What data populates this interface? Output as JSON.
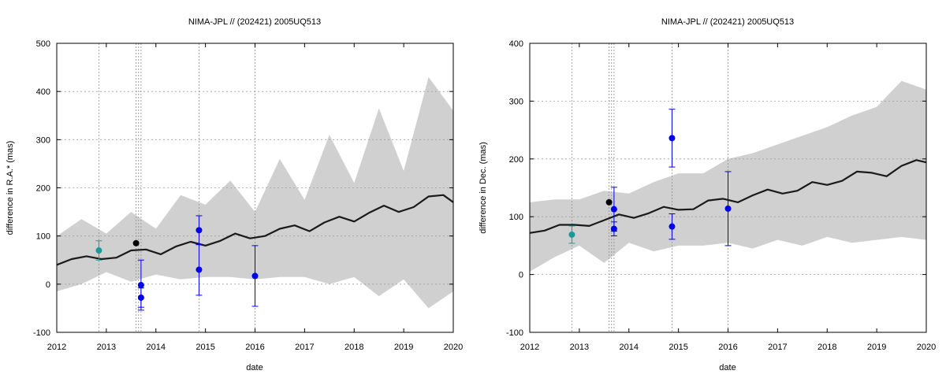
{
  "chart_data": [
    {
      "type": "scatter",
      "title": "NIMA-JPL // (202421) 2005UQ513",
      "xlabel": "date",
      "ylabel": "difference in R.A.* (mas)",
      "xlim": [
        2012,
        2020
      ],
      "ylim": [
        -100,
        500
      ],
      "xticks": [
        2012,
        2013,
        2014,
        2015,
        2016,
        2017,
        2018,
        2019,
        2020
      ],
      "yticks": [
        -100,
        0,
        100,
        200,
        300,
        400,
        500
      ],
      "grid": true,
      "vlines": [
        2012.85,
        2013.6,
        2013.65,
        2013.7,
        2014.87,
        2016.0
      ],
      "band": {
        "x": [
          2012.0,
          2012.5,
          2013.0,
          2013.5,
          2014.0,
          2014.5,
          2015.0,
          2015.5,
          2016.0,
          2016.5,
          2017.0,
          2017.5,
          2018.0,
          2018.5,
          2019.0,
          2019.5,
          2020.0
        ],
        "upper": [
          100,
          135,
          105,
          150,
          115,
          185,
          165,
          215,
          150,
          260,
          175,
          310,
          210,
          365,
          235,
          430,
          360
        ],
        "lower": [
          -15,
          0,
          25,
          5,
          20,
          10,
          15,
          15,
          10,
          15,
          15,
          0,
          15,
          -25,
          10,
          -50,
          -15
        ]
      },
      "model_line": {
        "x": [
          2012.0,
          2012.3,
          2012.6,
          2012.9,
          2013.2,
          2013.5,
          2013.8,
          2014.1,
          2014.4,
          2014.7,
          2015.0,
          2015.3,
          2015.6,
          2015.9,
          2016.2,
          2016.5,
          2016.8,
          2017.1,
          2017.4,
          2017.7,
          2018.0,
          2018.3,
          2018.6,
          2018.9,
          2019.2,
          2019.5,
          2019.8,
          2020.0
        ],
        "y": [
          40,
          52,
          58,
          52,
          55,
          70,
          72,
          62,
          78,
          88,
          80,
          90,
          105,
          95,
          100,
          115,
          122,
          110,
          128,
          140,
          130,
          148,
          163,
          150,
          160,
          182,
          185,
          170
        ]
      },
      "series": [
        {
          "name": "",
          "color": "#1a9b97",
          "points": [
            {
              "x": 2012.85,
              "y": 70,
              "err": 20
            }
          ]
        },
        {
          "name": "",
          "color": "#000000",
          "points": [
            {
              "x": 2013.6,
              "y": 85,
              "err": 0
            }
          ]
        },
        {
          "name": "",
          "color": "#0000ee",
          "points": [
            {
              "x": 2013.7,
              "y": -2,
              "err": 52
            },
            {
              "x": 2013.7,
              "y": -28,
              "err": 20
            },
            {
              "x": 2014.87,
              "y": 112,
              "err": 30
            },
            {
              "x": 2014.87,
              "y": 30,
              "err": 53
            },
            {
              "x": 2016.0,
              "y": 17,
              "err": 63
            }
          ]
        }
      ]
    },
    {
      "type": "scatter",
      "title": "NIMA-JPL // (202421) 2005UQ513",
      "xlabel": "date",
      "ylabel": "difference in Dec. (mas)",
      "xlim": [
        2012,
        2020
      ],
      "ylim": [
        -100,
        400
      ],
      "xticks": [
        2012,
        2013,
        2014,
        2015,
        2016,
        2017,
        2018,
        2019,
        2020
      ],
      "yticks": [
        -100,
        0,
        100,
        200,
        300,
        400
      ],
      "grid": true,
      "vlines": [
        2012.85,
        2013.6,
        2013.65,
        2013.7,
        2014.87,
        2016.0
      ],
      "band": {
        "x": [
          2012.0,
          2012.5,
          2013.0,
          2013.5,
          2014.0,
          2014.5,
          2015.0,
          2015.5,
          2016.0,
          2016.5,
          2017.0,
          2017.5,
          2018.0,
          2018.5,
          2019.0,
          2019.5,
          2020.0
        ],
        "upper": [
          125,
          130,
          130,
          145,
          140,
          160,
          175,
          175,
          200,
          210,
          225,
          240,
          255,
          275,
          290,
          335,
          320
        ],
        "lower": [
          5,
          30,
          50,
          20,
          55,
          40,
          50,
          50,
          55,
          45,
          60,
          50,
          65,
          55,
          60,
          65,
          60
        ]
      },
      "model_line": {
        "x": [
          2012.0,
          2012.3,
          2012.6,
          2012.9,
          2013.2,
          2013.5,
          2013.8,
          2014.1,
          2014.4,
          2014.7,
          2015.0,
          2015.3,
          2015.6,
          2015.9,
          2016.2,
          2016.5,
          2016.8,
          2017.1,
          2017.4,
          2017.7,
          2018.0,
          2018.3,
          2018.6,
          2018.9,
          2019.2,
          2019.5,
          2019.8,
          2020.0
        ],
        "y": [
          72,
          76,
          86,
          86,
          84,
          94,
          104,
          98,
          106,
          117,
          112,
          113,
          128,
          131,
          125,
          137,
          147,
          140,
          145,
          160,
          155,
          162,
          178,
          176,
          170,
          188,
          198,
          194
        ]
      },
      "series": [
        {
          "name": "",
          "color": "#1a9b97",
          "points": [
            {
              "x": 2012.85,
              "y": 69,
              "err": 15
            }
          ]
        },
        {
          "name": "",
          "color": "#000000",
          "points": [
            {
              "x": 2013.6,
              "y": 125,
              "err": 0
            }
          ]
        },
        {
          "name": "",
          "color": "#0000ee",
          "points": [
            {
              "x": 2013.7,
              "y": 113,
              "err": 38
            },
            {
              "x": 2013.7,
              "y": 79,
              "err": 12
            },
            {
              "x": 2014.87,
              "y": 236,
              "err": 50
            },
            {
              "x": 2014.87,
              "y": 83,
              "err": 22
            },
            {
              "x": 2016.0,
              "y": 114,
              "err": 64
            }
          ]
        }
      ]
    }
  ]
}
